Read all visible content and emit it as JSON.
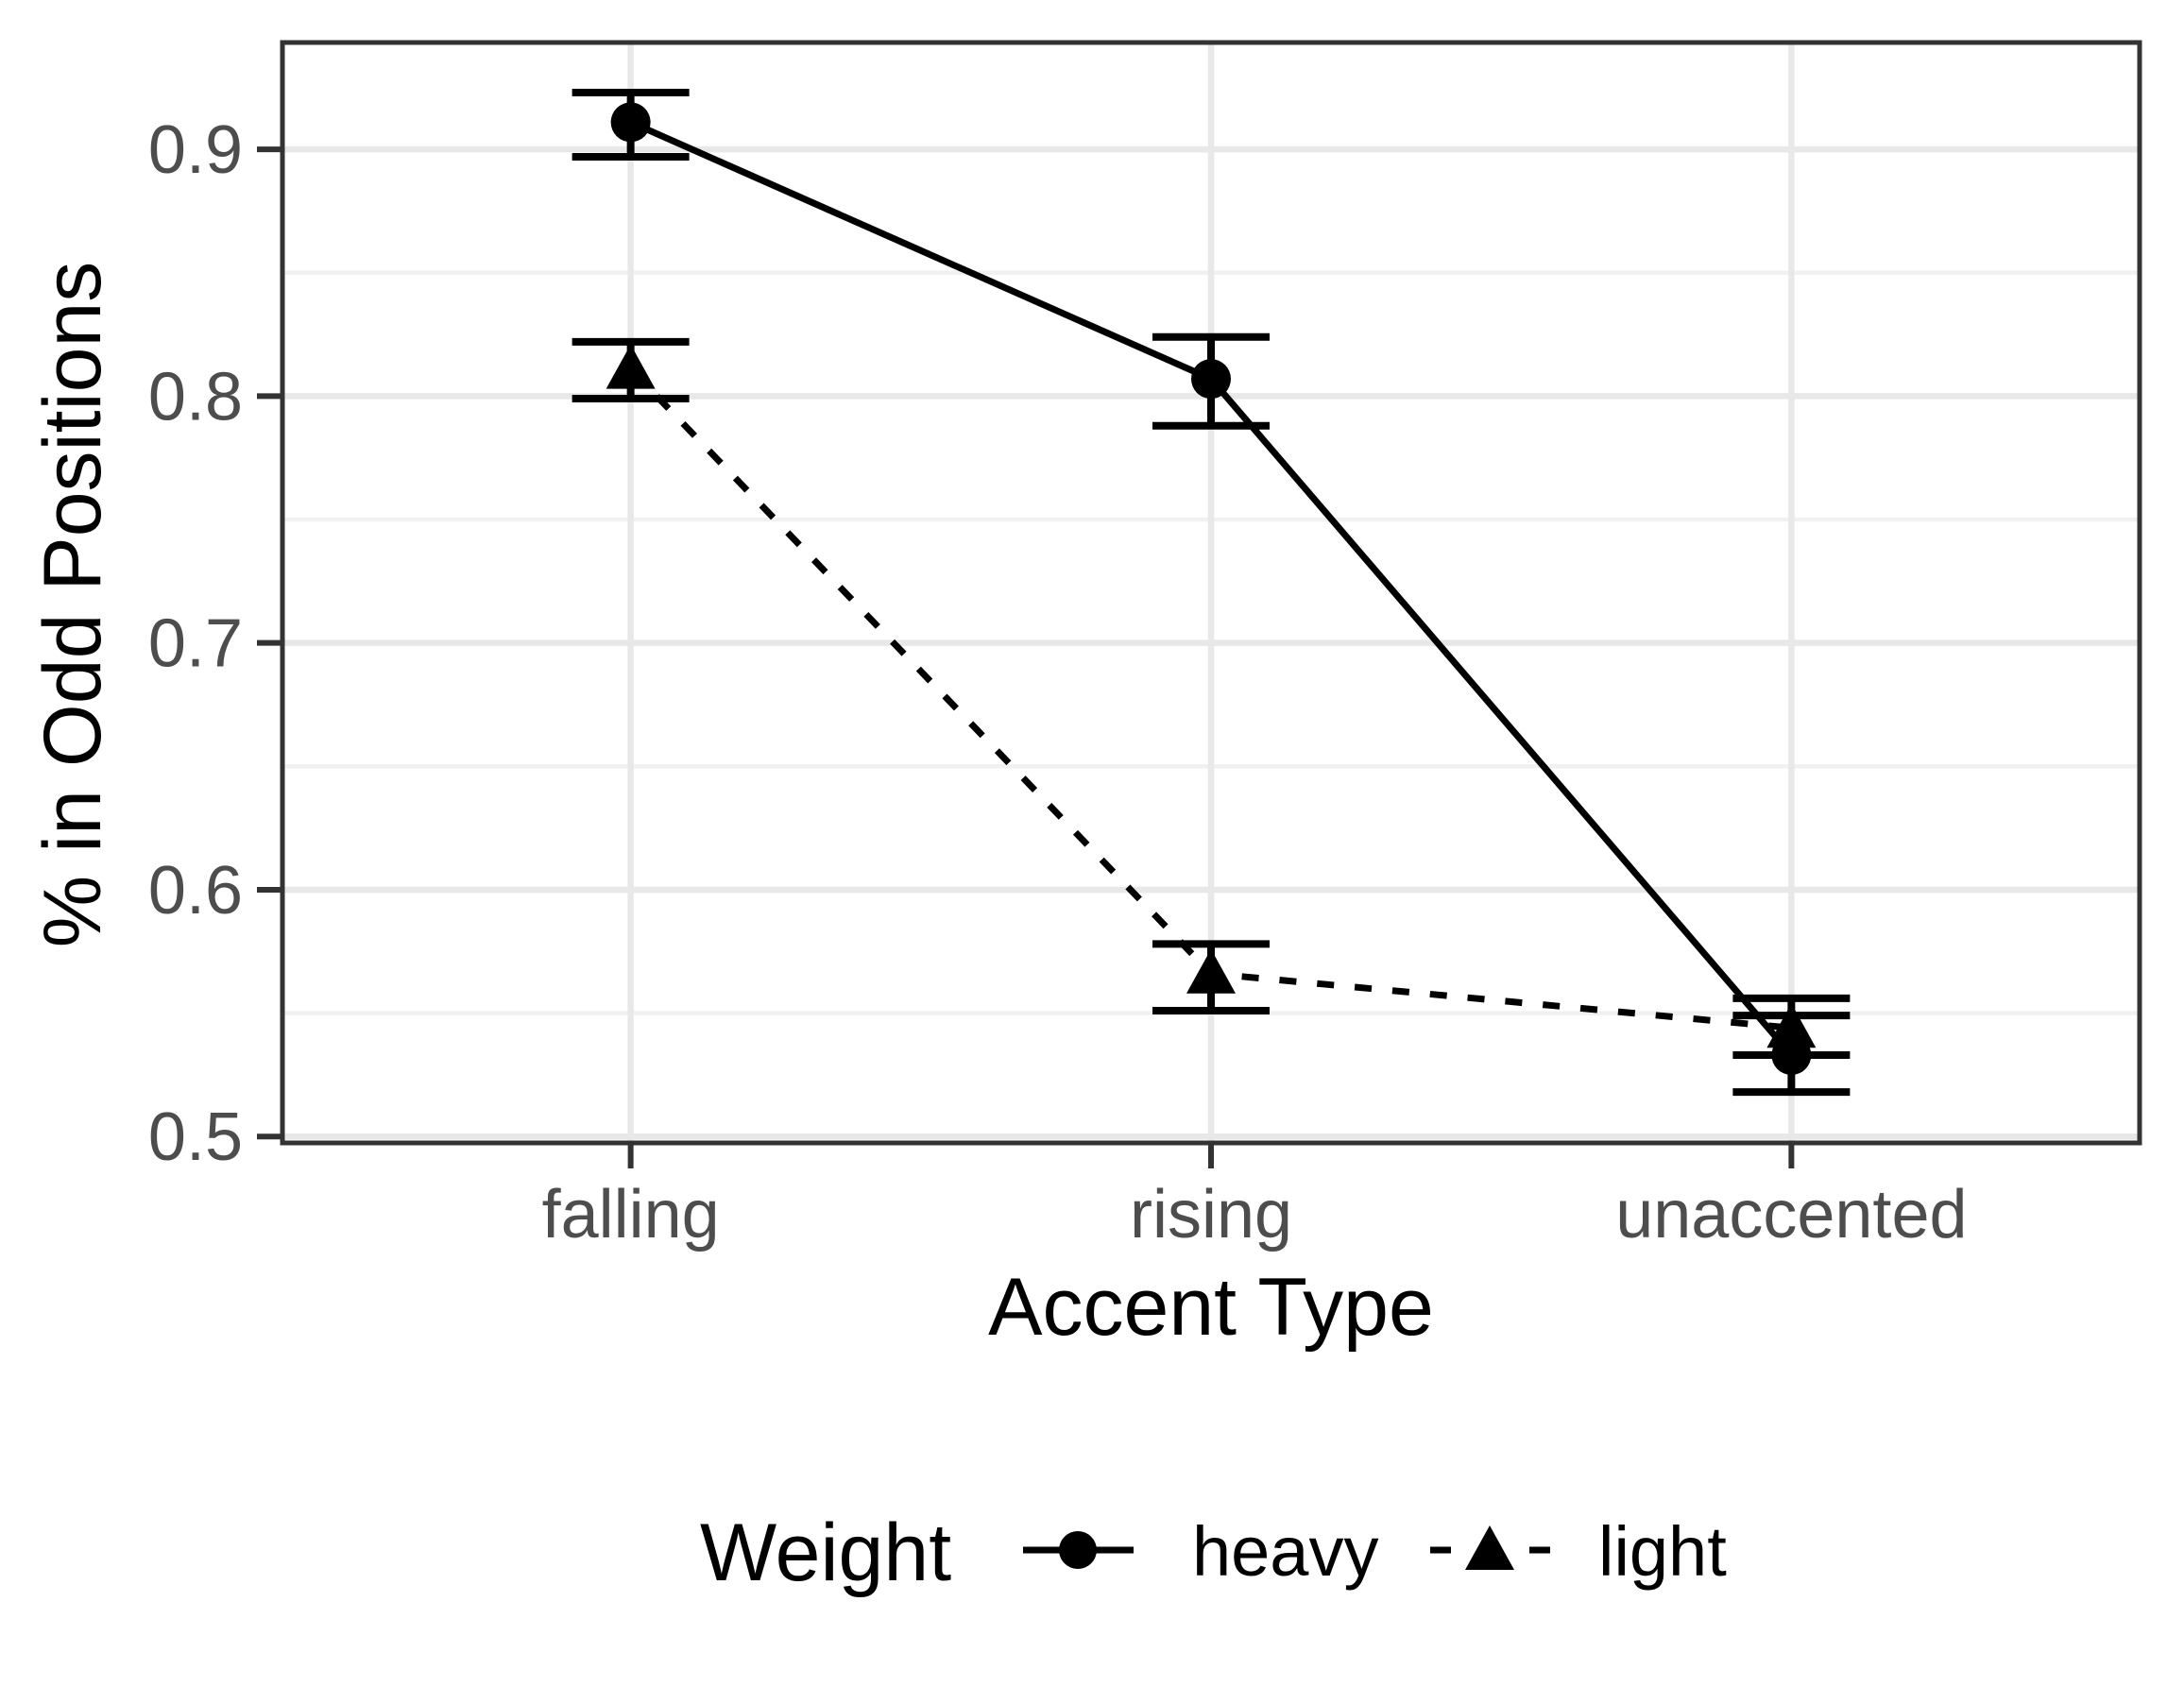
{
  "figure": {
    "background": "#ffffff"
  },
  "chart_data": {
    "type": "line",
    "title": "",
    "xlabel": "Accent Type",
    "ylabel": "% in Odd Positions",
    "categories": [
      "falling",
      "rising",
      "unaccented"
    ],
    "series": [
      {
        "name": "heavy",
        "marker": "circle",
        "linestyle": "solid",
        "values": [
          0.911,
          0.807,
          0.533
        ],
        "error_low": [
          0.897,
          0.788,
          0.518
        ],
        "error_high": [
          0.923,
          0.824,
          0.549
        ]
      },
      {
        "name": "light",
        "marker": "triangle",
        "linestyle": "dashed",
        "values": [
          0.811,
          0.566,
          0.544
        ],
        "error_low": [
          0.799,
          0.551,
          0.533
        ],
        "error_high": [
          0.822,
          0.578,
          0.556
        ]
      }
    ],
    "y_axis": {
      "title": "% in Odd Positions",
      "ticks": [
        0.9,
        0.8,
        0.7,
        0.6,
        0.5
      ],
      "tick_labels": [
        "0.9",
        "0.8",
        "0.7",
        "0.6",
        "0.5"
      ],
      "minor_ticks": [
        0.85,
        0.75,
        0.65,
        0.55
      ],
      "range": [
        0.4974,
        0.9433
      ]
    },
    "x_axis": {
      "title": "Accent Type",
      "categories": [
        "falling",
        "rising",
        "unaccented"
      ]
    },
    "legend": {
      "title": "Weight",
      "position": "bottom",
      "entries": [
        {
          "label": "heavy",
          "marker": "circle",
          "linestyle": "solid"
        },
        {
          "label": "light",
          "marker": "triangle",
          "linestyle": "dashed"
        }
      ]
    },
    "grid": true,
    "colors": {
      "data": "#000000",
      "panel_border": "#333333",
      "grid_major": "#e8e8e8",
      "grid_minor": "#f1f1f1",
      "axis_tick": "#333333",
      "tick_label": "#4d4d4d",
      "axis_title": "#000000",
      "legend_text": "#000000",
      "background": "#ffffff"
    }
  }
}
